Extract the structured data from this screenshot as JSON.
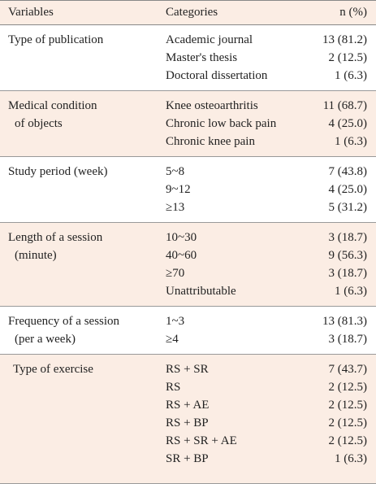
{
  "header": {
    "variable": "Variables",
    "category": "Categories",
    "n": "n (%)"
  },
  "groups": [
    {
      "variable": [
        "Type of publication"
      ],
      "rows": [
        [
          "Academic journal",
          "13 (81.2)"
        ],
        [
          "Master's thesis",
          "2 (12.5)"
        ],
        [
          "Doctoral dissertation",
          "1 (6.3)"
        ]
      ]
    },
    {
      "variable": [
        "Medical condition",
        "of objects"
      ],
      "rows": [
        [
          "Knee osteoarthritis",
          "11 (68.7)"
        ],
        [
          "Chronic low back pain",
          "4 (25.0)"
        ],
        [
          "Chronic knee pain",
          "1 (6.3)"
        ]
      ]
    },
    {
      "variable": [
        "Study period (week)"
      ],
      "rows": [
        [
          "5~8",
          "7 (43.8)"
        ],
        [
          "9~12",
          "4 (25.0)"
        ],
        [
          "≥13",
          "5 (31.2)"
        ]
      ]
    },
    {
      "variable": [
        "Length of a session",
        "(minute)"
      ],
      "rows": [
        [
          "10~30",
          "3 (18.7)"
        ],
        [
          "40~60",
          "9 (56.3)"
        ],
        [
          "≥70",
          "3 (18.7)"
        ],
        [
          "Unattributable",
          "1 (6.3)"
        ]
      ]
    },
    {
      "variable": [
        "Frequency of a session",
        "(per a week)"
      ],
      "rows": [
        [
          "1~3",
          "13 (81.3)"
        ],
        [
          "≥4",
          "3 (18.7)"
        ]
      ]
    },
    {
      "variable": [
        "Type of exercise"
      ],
      "rows": [
        [
          "RS + SR",
          "7 (43.7)"
        ],
        [
          "RS",
          "2 (12.5)"
        ],
        [
          "RS + AE",
          "2 (12.5)"
        ],
        [
          "RS + BP",
          "2 (12.5)"
        ],
        [
          "RS + SR + AE",
          "2 (12.5)"
        ],
        [
          "SR + BP",
          "1 (6.3)"
        ]
      ]
    }
  ]
}
